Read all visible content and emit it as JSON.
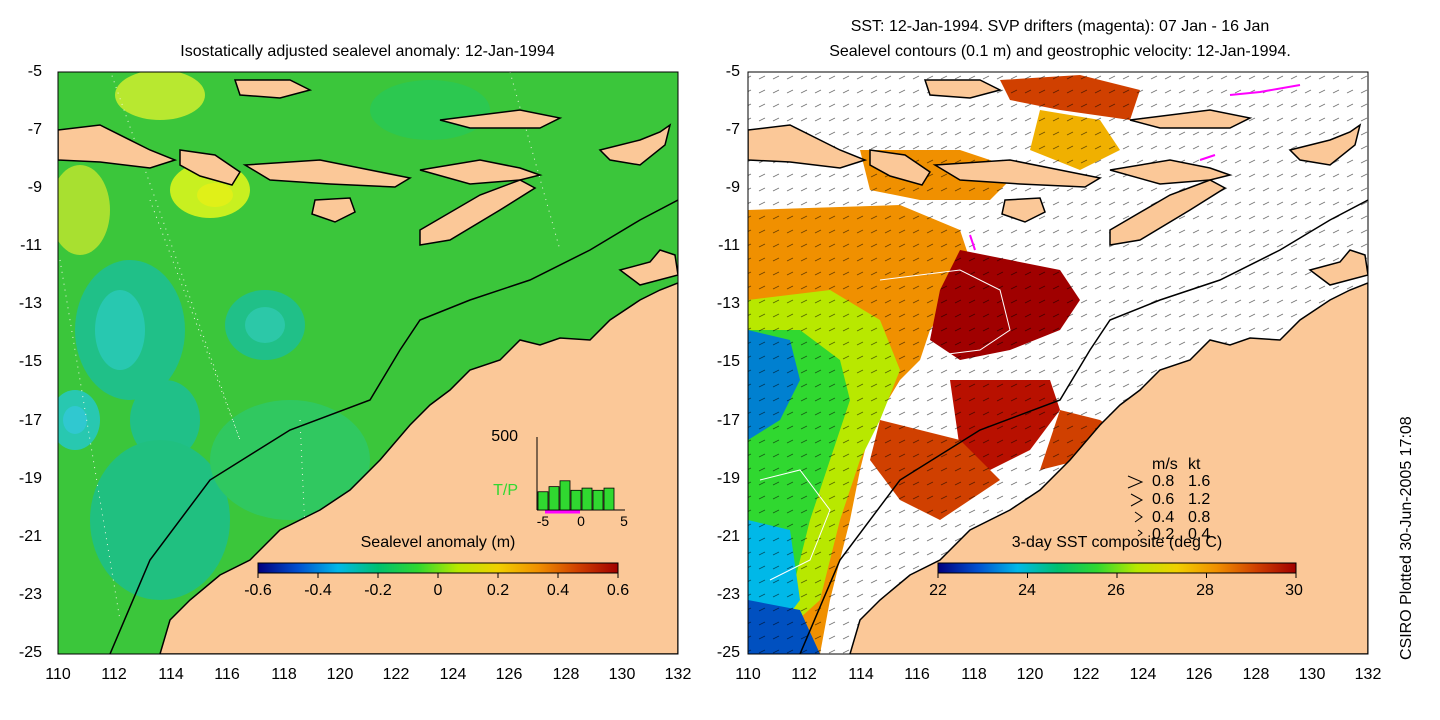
{
  "left_panel": {
    "title": "Isostatically adjusted sealevel anomaly: 12-Jan-1994",
    "colorbar_title": "Sealevel anomaly (m)",
    "colorbar_ticks": [
      "-0.6",
      "-0.4",
      "-0.2",
      "0",
      "0.2",
      "0.4",
      "0.6"
    ],
    "colorbar_colors": [
      "#00007f",
      "#0050d0",
      "#00b8e8",
      "#00c070",
      "#30d830",
      "#b8e800",
      "#f0d000",
      "#f09000",
      "#d04000",
      "#a00000"
    ],
    "inset": {
      "ymax_label": "500",
      "series_label": "T/P",
      "x_ticks": [
        "-5",
        "0",
        "5"
      ],
      "bars": [
        0.25,
        0.32,
        0.4,
        0.27,
        0.3,
        0.27,
        0.3
      ]
    }
  },
  "right_panel": {
    "title_line1": "SST: 12-Jan-1994. SVP drifters (magenta): 07 Jan - 16 Jan",
    "title_line2": "Sealevel contours (0.1 m) and geostrophic velocity: 12-Jan-1994.",
    "colorbar_title": "3-day SST composite (deg C)",
    "colorbar_ticks": [
      "22",
      "24",
      "26",
      "28",
      "30"
    ],
    "colorbar_colors": [
      "#00007f",
      "#0050d0",
      "#00b8e8",
      "#00c070",
      "#30d830",
      "#b8e800",
      "#f0d000",
      "#f09000",
      "#d04000",
      "#a00000"
    ],
    "velocity_legend": {
      "header_ms": "m/s",
      "header_kt": "kt",
      "rows": [
        {
          "ms": "0.8",
          "kt": "1.6"
        },
        {
          "ms": "0.6",
          "kt": "1.2"
        },
        {
          "ms": "0.4",
          "kt": "0.8"
        },
        {
          "ms": "0.2",
          "kt": "0.4"
        }
      ]
    }
  },
  "axes": {
    "y_ticks": [
      "-5",
      "-7",
      "-9",
      "-11",
      "-13",
      "-15",
      "-17",
      "-19",
      "-21",
      "-23",
      "-25"
    ],
    "x_ticks": [
      "110",
      "112",
      "114",
      "116",
      "118",
      "120",
      "122",
      "124",
      "126",
      "128",
      "130",
      "132"
    ]
  },
  "credit": "CSIRO Plotted 30-Jun-2005 17:08",
  "colors": {
    "land": "#fbc898",
    "ocean_left": "#3bc63b",
    "no_data": "#ffffff",
    "drifters": "#ff00ff"
  }
}
